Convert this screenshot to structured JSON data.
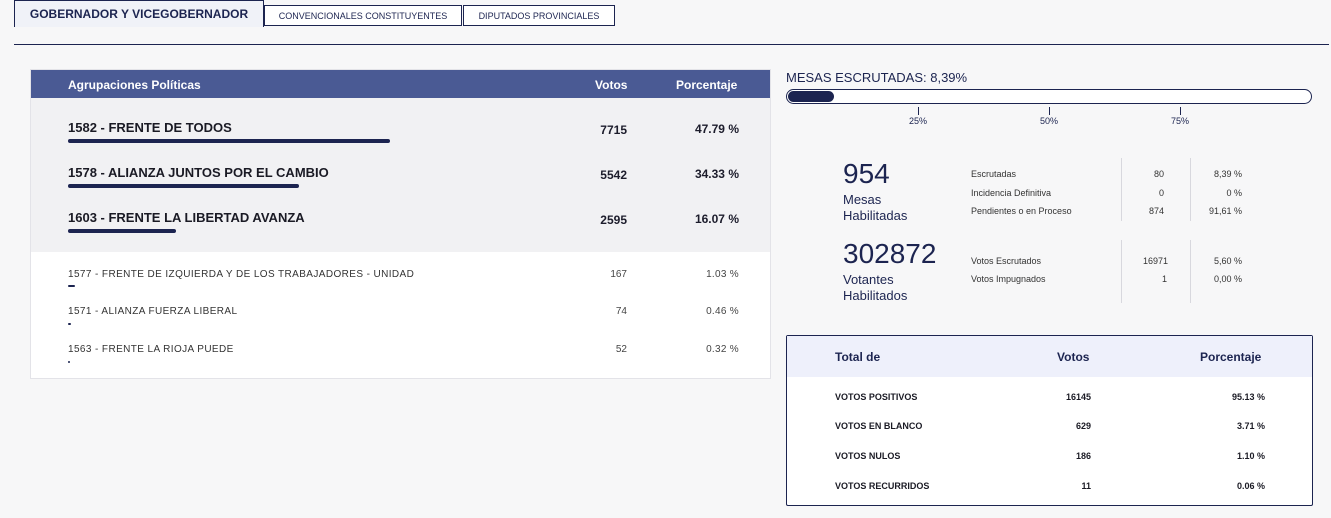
{
  "tabs": [
    {
      "label": "GOBERNADOR Y VICEGOBERNADOR",
      "active": true
    },
    {
      "label": "CONVENCIONALES CONSTITUYENTES",
      "active": false
    },
    {
      "label": "DIPUTADOS PROVINCIALES",
      "active": false
    }
  ],
  "results": {
    "headers": {
      "party": "Agrupaciones Políticas",
      "votes": "Votos",
      "percent": "Porcentaje"
    },
    "major": [
      {
        "name": "1582 - FRENTE DE TODOS",
        "votes": "7715",
        "percent": "47.79 %",
        "share": 0.4779
      },
      {
        "name": "1578 - ALIANZA JUNTOS POR EL CAMBIO",
        "votes": "5542",
        "percent": "34.33 %",
        "share": 0.3433
      },
      {
        "name": "1603 - FRENTE LA LIBERTAD AVANZA",
        "votes": "2595",
        "percent": "16.07 %",
        "share": 0.1607
      }
    ],
    "minor": [
      {
        "name": "1577 - FRENTE DE IZQUIERDA Y DE LOS TRABAJADORES - UNIDAD",
        "votes": "167",
        "percent": "1.03 %",
        "share": 0.0103
      },
      {
        "name": "1571 - ALIANZA FUERZA LIBERAL",
        "votes": "74",
        "percent": "0.46 %",
        "share": 0.0046
      },
      {
        "name": "1563 - FRENTE LA RIOJA PUEDE",
        "votes": "52",
        "percent": "0.32 %",
        "share": 0.0032
      }
    ]
  },
  "mesas": {
    "title": "MESAS ESCRUTADAS: 8,39%",
    "progress": 0.0839,
    "ticks": [
      "25%",
      "50%",
      "75%"
    ]
  },
  "mesas_stats": {
    "number": "954",
    "label_line1": "Mesas",
    "label_line2": "Habilitadas",
    "rows": [
      {
        "label": "Escrutadas",
        "count": "80",
        "percent": "8,39 %"
      },
      {
        "label": "Incidencia Definitiva",
        "count": "0",
        "percent": "0 %"
      },
      {
        "label": "Pendientes o en Proceso",
        "count": "874",
        "percent": "91,61 %"
      }
    ]
  },
  "votantes_stats": {
    "number": "302872",
    "label_line1": "Votantes",
    "label_line2": "Habilitados",
    "rows": [
      {
        "label": "Votos Escrutados",
        "count": "16971",
        "percent": "5,60 %"
      },
      {
        "label": "Votos Impugnados",
        "count": "1",
        "percent": "0,00 %"
      }
    ]
  },
  "totals": {
    "headers": {
      "label": "Total de",
      "votes": "Votos",
      "percent": "Porcentaje"
    },
    "rows": [
      {
        "label": "VOTOS POSITIVOS",
        "votes": "16145",
        "percent": "95.13 %"
      },
      {
        "label": "VOTOS EN BLANCO",
        "votes": "629",
        "percent": "3.71 %"
      },
      {
        "label": "VOTOS NULOS",
        "votes": "186",
        "percent": "1.10 %"
      },
      {
        "label": "VOTOS RECURRIDOS",
        "votes": "11",
        "percent": "0.06 %"
      }
    ]
  },
  "colors": {
    "primary": "#1c2450",
    "header_bg": "#4a5a94",
    "major_bg": "#f1f1f3",
    "totals_head_bg": "#eef0fb"
  }
}
